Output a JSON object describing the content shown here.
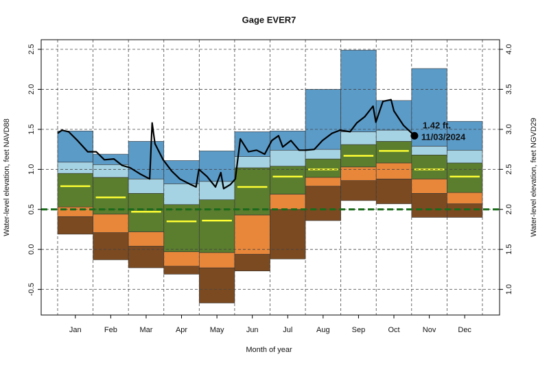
{
  "chart_data": {
    "type": "percentile-band",
    "title": "Gage EVER7",
    "xlabel": "Month of year",
    "ylabel": "Water-level elevation, feet NAVD88",
    "y2label": "Water-level elevation, feet NGVD29",
    "categories": [
      "Jan",
      "Feb",
      "Mar",
      "Apr",
      "May",
      "Jun",
      "Jul",
      "Aug",
      "Sep",
      "Oct",
      "Nov",
      "Dec"
    ],
    "ylim": [
      -0.82,
      2.62
    ],
    "yticks": [
      {
        "value": -0.5,
        "label": "-0.5"
      },
      {
        "value": 0,
        "label": "0.0"
      },
      0.5,
      {
        "value": 1,
        "label": "1.0"
      },
      1.5,
      {
        "value": 2,
        "label": "2.0"
      },
      2.5
    ],
    "y2lim": [
      0.68,
      4.12
    ],
    "y2ticks": [
      {
        "value": 1,
        "label": "1.0"
      },
      1.5,
      {
        "value": 2,
        "label": "2.0"
      },
      2.5,
      {
        "value": 3,
        "label": "3.0"
      },
      3.5,
      {
        "value": 4,
        "label": "4.0"
      }
    ],
    "grid": true,
    "base": [
      0.19,
      -0.13,
      -0.23,
      -0.31,
      -0.67,
      -0.27,
      -0.12,
      0.36,
      0.61,
      0.57,
      0.4,
      0.4
    ],
    "bands": [
      {
        "color": "#7b4a21",
        "values": [
          0.41,
          0.21,
          0.04,
          -0.21,
          -0.23,
          -0.06,
          0.5,
          0.79,
          0.86,
          0.88,
          0.7,
          0.57
        ]
      },
      {
        "color": "#e8873a",
        "values": [
          0.53,
          0.44,
          0.22,
          -0.03,
          -0.04,
          0.43,
          0.69,
          0.9,
          1.03,
          1.08,
          0.88,
          0.71
        ]
      },
      {
        "color": "#5a7d2e",
        "values": [
          0.95,
          0.9,
          0.7,
          0.56,
          0.62,
          1.02,
          1.04,
          1.13,
          1.31,
          1.35,
          1.18,
          1.08
        ]
      },
      {
        "color": "#a6d3e3",
        "values": [
          1.09,
          1.06,
          0.88,
          0.82,
          0.85,
          1.16,
          1.24,
          1.25,
          1.47,
          1.49,
          1.29,
          1.24
        ]
      },
      {
        "color": "#5b9bc8",
        "values": [
          1.48,
          1.19,
          1.35,
          1.11,
          1.23,
          1.47,
          1.48,
          2.0,
          2.49,
          1.86,
          2.26,
          1.6
        ]
      }
    ],
    "median": {
      "color": "#ffff33",
      "values": [
        0.79,
        0.65,
        0.47,
        0.35,
        0.36,
        0.78,
        0.91,
        1.0,
        1.17,
        1.23,
        1.0,
        0.91
      ]
    },
    "reference_line": {
      "value": 0.5,
      "color": "#1a6b1a"
    },
    "current": {
      "color": "#000000",
      "x": [
        0,
        0.12,
        0.31,
        0.56,
        0.85,
        1.09,
        1.32,
        1.59,
        1.82,
        2.05,
        2.34,
        2.6,
        2.67,
        2.75,
        2.98,
        3.22,
        3.45,
        3.76,
        3.91,
        3.99,
        4.22,
        4.46,
        4.61,
        4.69,
        4.88,
        5.02,
        5.16,
        5.39,
        5.62,
        5.85,
        6.05,
        6.24,
        6.36,
        6.59,
        6.82,
        7.02,
        7.25,
        7.48,
        7.75,
        7.98,
        8.26,
        8.45,
        8.68,
        8.91,
        8.99,
        9.19,
        9.42,
        9.5,
        9.77,
        10.08
      ],
      "values": [
        1.45,
        1.49,
        1.47,
        1.36,
        1.22,
        1.22,
        1.12,
        1.13,
        1.05,
        1.02,
        0.94,
        0.88,
        1.58,
        1.32,
        1.12,
        0.98,
        0.88,
        0.81,
        0.78,
        1.0,
        0.91,
        0.78,
        0.96,
        0.76,
        0.81,
        0.88,
        1.38,
        1.22,
        1.24,
        1.19,
        1.36,
        1.42,
        1.28,
        1.36,
        1.24,
        1.24,
        1.25,
        1.36,
        1.45,
        1.49,
        1.47,
        1.58,
        1.66,
        1.79,
        1.59,
        1.85,
        1.87,
        1.73,
        1.55,
        1.42
      ]
    },
    "annotation": {
      "value": "1.42 ft.",
      "date": "11/03/2024"
    }
  }
}
